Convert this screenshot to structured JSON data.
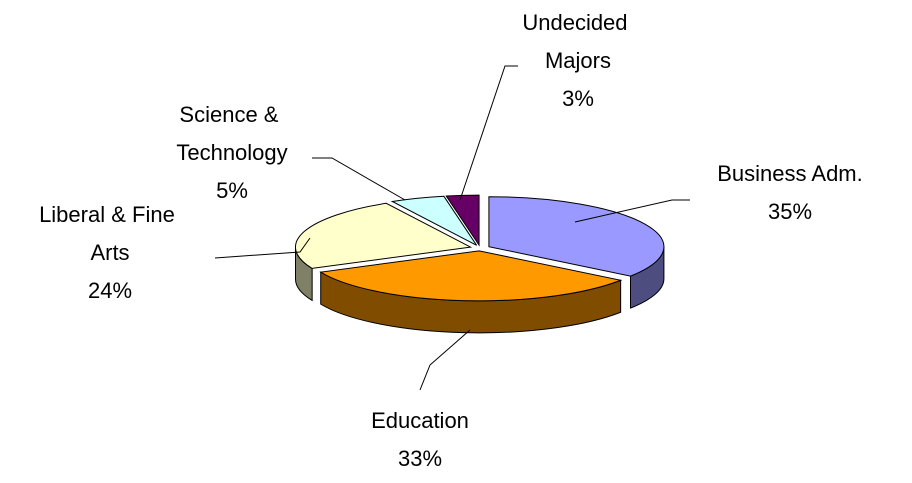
{
  "chart_data": {
    "type": "pie",
    "categories": [
      "Business Adm.",
      "Education",
      "Liberal & Fine Arts",
      "Science & Technology",
      "Undecided Majors"
    ],
    "values": [
      35,
      33,
      24,
      5,
      3
    ],
    "value_labels": [
      "35%",
      "33%",
      "24%",
      "5%",
      "3%"
    ],
    "colors": [
      "#9999ff",
      "#ff9900",
      "#ffffcc",
      "#ccffff",
      "#660066"
    ]
  }
}
